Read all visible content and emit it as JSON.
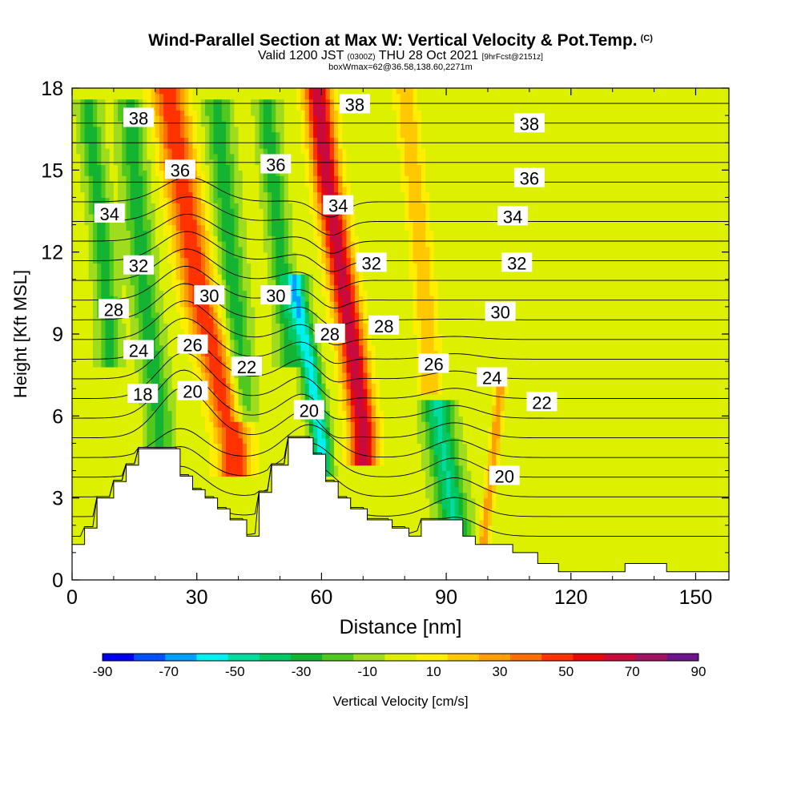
{
  "header": {
    "title": "Wind-Parallel Section at Max W: Vertical Velocity & Pot.Temp.",
    "copyright": "(C)",
    "valid_prefix": "Valid 1200 JST",
    "valid_utc": "(0300Z)",
    "valid_date": "THU 28 Oct 2021",
    "forecast_info": "[9hrFcst@2151z]",
    "box_info": "boxWmax=62@36.58,138.60,2271m"
  },
  "chart_data": {
    "type": "heatmap",
    "xlabel": "Distance [nm]",
    "ylabel": "Height [Kft MSL]",
    "xlim": [
      0,
      158
    ],
    "ylim": [
      0,
      18
    ],
    "x_ticks": [
      0,
      30,
      60,
      90,
      120,
      150
    ],
    "y_ticks": [
      0,
      3,
      6,
      9,
      12,
      15,
      18
    ],
    "colorbar": {
      "label": "Vertical Velocity [cm/s]",
      "tick_labels": [
        -90,
        -70,
        -50,
        -30,
        -10,
        10,
        30,
        50,
        70,
        90
      ],
      "bounds": [
        -90,
        -80,
        -70,
        -60,
        -50,
        -40,
        -30,
        -20,
        -10,
        0,
        10,
        20,
        30,
        40,
        50,
        60,
        70,
        80,
        90
      ],
      "colors": [
        "#0000f0",
        "#0050ff",
        "#00a0ff",
        "#00f0f0",
        "#00dca0",
        "#00c864",
        "#14b432",
        "#50c81e",
        "#a0dc1e",
        "#dcf000",
        "#ffee00",
        "#ffc800",
        "#ffa000",
        "#ff6e00",
        "#ff3200",
        "#e60a0a",
        "#c80a3c",
        "#a01464",
        "#6e148c"
      ]
    },
    "terrain": [
      [
        0,
        1.3
      ],
      [
        3,
        1.3
      ],
      [
        3,
        1.9
      ],
      [
        6,
        1.9
      ],
      [
        6,
        3.0
      ],
      [
        10,
        3.0
      ],
      [
        10,
        3.6
      ],
      [
        13,
        3.6
      ],
      [
        13,
        4.2
      ],
      [
        16,
        4.2
      ],
      [
        16,
        4.8
      ],
      [
        26,
        4.8
      ],
      [
        26,
        3.8
      ],
      [
        29,
        3.8
      ],
      [
        29,
        3.3
      ],
      [
        32,
        3.3
      ],
      [
        32,
        3.0
      ],
      [
        35,
        3.0
      ],
      [
        35,
        2.6
      ],
      [
        38,
        2.6
      ],
      [
        38,
        2.2
      ],
      [
        42,
        2.2
      ],
      [
        42,
        1.6
      ],
      [
        45,
        1.6
      ],
      [
        45,
        3.2
      ],
      [
        48,
        3.2
      ],
      [
        48,
        4.2
      ],
      [
        52,
        4.2
      ],
      [
        52,
        5.2
      ],
      [
        58,
        5.2
      ],
      [
        58,
        4.6
      ],
      [
        61,
        4.6
      ],
      [
        61,
        3.6
      ],
      [
        64,
        3.6
      ],
      [
        64,
        3.0
      ],
      [
        67,
        3.0
      ],
      [
        67,
        2.6
      ],
      [
        71,
        2.6
      ],
      [
        71,
        2.2
      ],
      [
        77,
        2.2
      ],
      [
        77,
        1.9
      ],
      [
        81,
        1.9
      ],
      [
        81,
        1.6
      ],
      [
        84,
        1.6
      ],
      [
        84,
        2.2
      ],
      [
        94,
        2.2
      ],
      [
        94,
        1.6
      ],
      [
        97,
        1.6
      ],
      [
        97,
        1.3
      ],
      [
        106,
        1.3
      ],
      [
        106,
        1.0
      ],
      [
        112,
        1.0
      ],
      [
        112,
        0.6
      ],
      [
        117,
        0.6
      ],
      [
        117,
        0.3
      ],
      [
        133,
        0.3
      ],
      [
        133,
        0.6
      ],
      [
        143,
        0.6
      ],
      [
        143,
        0.3
      ],
      [
        158,
        0.3
      ]
    ],
    "w_features": [
      {
        "x": [
          23,
          26,
          29,
          31,
          33,
          36,
          39
        ],
        "y": [
          18,
          15,
          12,
          10,
          9,
          7,
          5
        ],
        "w": 4,
        "value": 55
      },
      {
        "x": [
          59,
          61,
          64,
          67,
          70
        ],
        "y": [
          18,
          15,
          12,
          9,
          5.5
        ],
        "w": 3.2,
        "value": 75
      },
      {
        "x": [
          54,
          57,
          60
        ],
        "y": [
          10.5,
          8,
          5
        ],
        "w": 2.2,
        "value": -60
      },
      {
        "x": [
          4,
          7,
          9
        ],
        "y": [
          17,
          13,
          9
        ],
        "w": 2.5,
        "value": -30
      },
      {
        "x": [
          14,
          17,
          21
        ],
        "y": [
          17,
          11,
          6
        ],
        "w": 3,
        "value": -30
      },
      {
        "x": [
          35,
          38,
          41
        ],
        "y": [
          17,
          12,
          7
        ],
        "w": 3,
        "value": -30
      },
      {
        "x": [
          47,
          50,
          52
        ],
        "y": [
          17,
          12,
          9
        ],
        "w": 2.5,
        "value": -30
      },
      {
        "x": [
          88,
          90,
          92
        ],
        "y": [
          6,
          4,
          2
        ],
        "w": 3.5,
        "value": -45
      },
      {
        "x": [
          103,
          101,
          99
        ],
        "y": [
          7,
          4,
          1.5
        ],
        "w": 1.2,
        "value": 35
      },
      {
        "x": [
          80,
          84,
          86
        ],
        "y": [
          18,
          12,
          8
        ],
        "w": 2.5,
        "value": 25
      }
    ],
    "theta_contour_labels": [
      {
        "text": "38",
        "x": 16,
        "y": 16.9
      },
      {
        "text": "36",
        "x": 26,
        "y": 15.0
      },
      {
        "text": "34",
        "x": 9,
        "y": 13.4
      },
      {
        "text": "32",
        "x": 16,
        "y": 11.5
      },
      {
        "text": "30",
        "x": 33,
        "y": 10.4
      },
      {
        "text": "28",
        "x": 10,
        "y": 9.9
      },
      {
        "text": "26",
        "x": 29,
        "y": 8.6
      },
      {
        "text": "24",
        "x": 16,
        "y": 8.4
      },
      {
        "text": "22",
        "x": 42,
        "y": 7.8
      },
      {
        "text": "20",
        "x": 29,
        "y": 6.9
      },
      {
        "text": "18",
        "x": 17,
        "y": 6.8
      },
      {
        "text": "38",
        "x": 68,
        "y": 17.4
      },
      {
        "text": "36",
        "x": 49,
        "y": 15.2
      },
      {
        "text": "34",
        "x": 64,
        "y": 13.7
      },
      {
        "text": "32",
        "x": 72,
        "y": 11.6
      },
      {
        "text": "30",
        "x": 49,
        "y": 10.4
      },
      {
        "text": "28",
        "x": 62,
        "y": 9.0
      },
      {
        "text": "28",
        "x": 75,
        "y": 9.3
      },
      {
        "text": "26",
        "x": 87,
        "y": 7.9
      },
      {
        "text": "20",
        "x": 57,
        "y": 6.2
      },
      {
        "text": "24",
        "x": 101,
        "y": 7.4
      },
      {
        "text": "22",
        "x": 113,
        "y": 6.5
      },
      {
        "text": "20",
        "x": 104,
        "y": 3.8
      },
      {
        "text": "38",
        "x": 110,
        "y": 16.7
      },
      {
        "text": "36",
        "x": 110,
        "y": 14.7
      },
      {
        "text": "34",
        "x": 106,
        "y": 13.3
      },
      {
        "text": "32",
        "x": 107,
        "y": 11.6
      },
      {
        "text": "30",
        "x": 103,
        "y": 9.8
      }
    ]
  }
}
